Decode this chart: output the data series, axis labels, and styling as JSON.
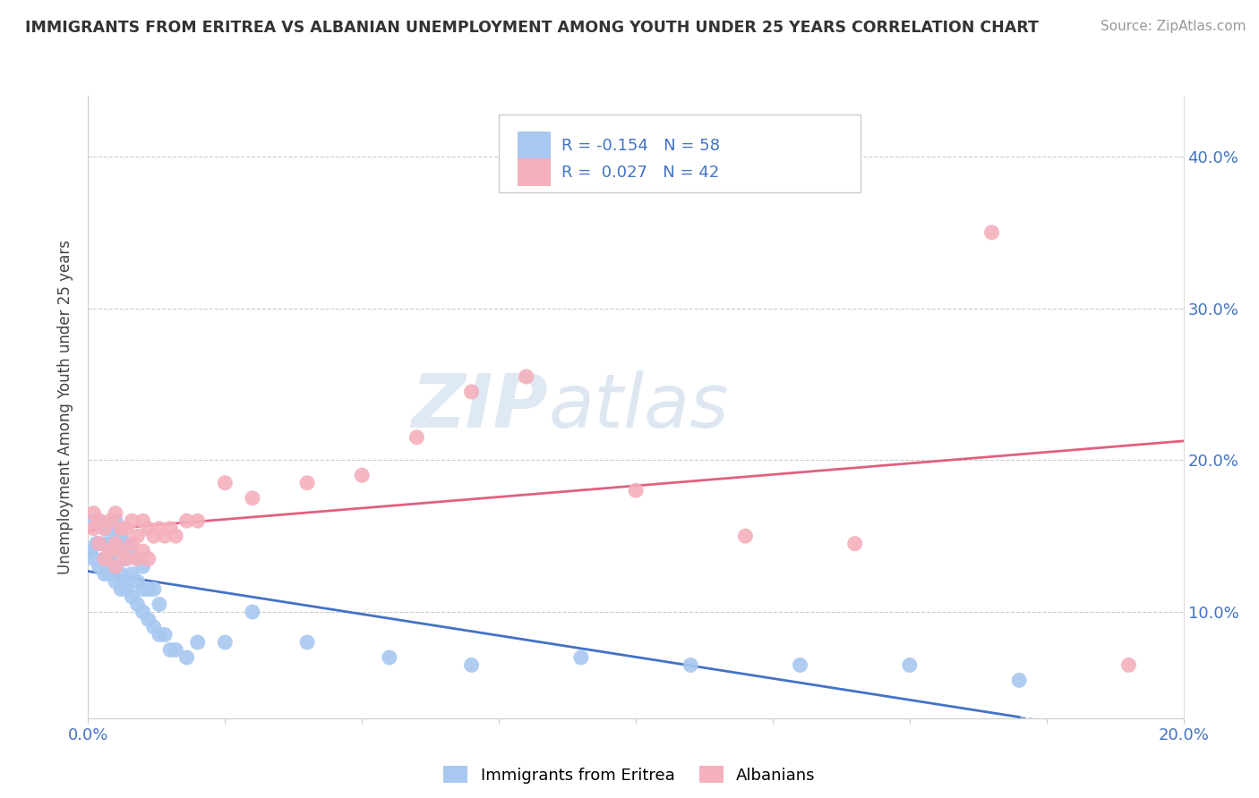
{
  "title": "IMMIGRANTS FROM ERITREA VS ALBANIAN UNEMPLOYMENT AMONG YOUTH UNDER 25 YEARS CORRELATION CHART",
  "source": "Source: ZipAtlas.com",
  "ylabel": "Unemployment Among Youth under 25 years",
  "y_ticks": [
    0.1,
    0.2,
    0.3,
    0.4
  ],
  "y_tick_labels": [
    "10.0%",
    "20.0%",
    "30.0%",
    "40.0%"
  ],
  "xlim": [
    0.0,
    0.2
  ],
  "ylim": [
    0.03,
    0.44
  ],
  "R_eritrea": -0.154,
  "N_eritrea": 58,
  "R_albanian": 0.027,
  "N_albanian": 42,
  "color_eritrea": "#a8c8f0",
  "color_albanian": "#f4b0bc",
  "color_trend_eritrea": "#4472c4",
  "color_trend_albanian": "#e06080",
  "watermark_zip": "ZIP",
  "watermark_atlas": "atlas",
  "eritrea_x": [
    0.0005,
    0.001,
    0.001,
    0.0015,
    0.002,
    0.002,
    0.002,
    0.003,
    0.003,
    0.003,
    0.003,
    0.004,
    0.004,
    0.004,
    0.004,
    0.005,
    0.005,
    0.005,
    0.005,
    0.005,
    0.006,
    0.006,
    0.006,
    0.006,
    0.007,
    0.007,
    0.007,
    0.007,
    0.008,
    0.008,
    0.008,
    0.009,
    0.009,
    0.009,
    0.01,
    0.01,
    0.01,
    0.011,
    0.011,
    0.012,
    0.012,
    0.013,
    0.013,
    0.014,
    0.015,
    0.016,
    0.018,
    0.02,
    0.025,
    0.03,
    0.04,
    0.055,
    0.07,
    0.09,
    0.11,
    0.13,
    0.15,
    0.17
  ],
  "eritrea_y": [
    0.14,
    0.16,
    0.135,
    0.145,
    0.13,
    0.145,
    0.16,
    0.125,
    0.135,
    0.145,
    0.155,
    0.125,
    0.135,
    0.145,
    0.155,
    0.12,
    0.13,
    0.14,
    0.15,
    0.16,
    0.115,
    0.125,
    0.14,
    0.15,
    0.115,
    0.12,
    0.135,
    0.145,
    0.11,
    0.125,
    0.14,
    0.105,
    0.12,
    0.135,
    0.1,
    0.115,
    0.13,
    0.095,
    0.115,
    0.09,
    0.115,
    0.085,
    0.105,
    0.085,
    0.075,
    0.075,
    0.07,
    0.08,
    0.08,
    0.1,
    0.08,
    0.07,
    0.065,
    0.07,
    0.065,
    0.065,
    0.065,
    0.055
  ],
  "albanian_x": [
    0.001,
    0.001,
    0.002,
    0.002,
    0.003,
    0.003,
    0.004,
    0.004,
    0.005,
    0.005,
    0.005,
    0.006,
    0.006,
    0.007,
    0.007,
    0.008,
    0.008,
    0.009,
    0.009,
    0.01,
    0.01,
    0.011,
    0.011,
    0.012,
    0.013,
    0.014,
    0.015,
    0.016,
    0.018,
    0.02,
    0.025,
    0.03,
    0.04,
    0.05,
    0.06,
    0.07,
    0.08,
    0.1,
    0.12,
    0.14,
    0.165,
    0.19
  ],
  "albanian_y": [
    0.155,
    0.165,
    0.145,
    0.16,
    0.135,
    0.155,
    0.14,
    0.16,
    0.13,
    0.145,
    0.165,
    0.14,
    0.155,
    0.135,
    0.155,
    0.145,
    0.16,
    0.135,
    0.15,
    0.14,
    0.16,
    0.135,
    0.155,
    0.15,
    0.155,
    0.15,
    0.155,
    0.15,
    0.16,
    0.16,
    0.185,
    0.175,
    0.185,
    0.19,
    0.215,
    0.245,
    0.255,
    0.18,
    0.15,
    0.145,
    0.35,
    0.065
  ]
}
